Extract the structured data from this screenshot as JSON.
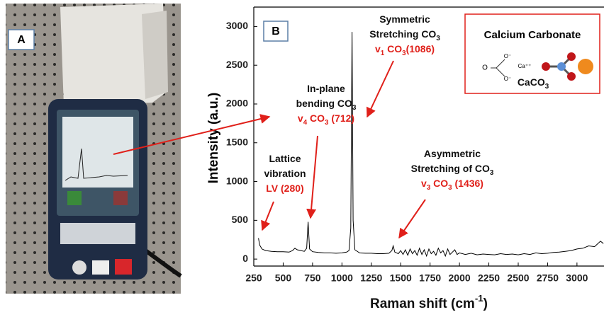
{
  "chart_data": {
    "type": "line",
    "panel_labels": [
      "A",
      "B"
    ],
    "y_label": "Intensity (a.u.)",
    "x_label": [
      "Raman shift (cm",
      "-1",
      ")"
    ],
    "color": "#000000",
    "x": [
      290,
      300,
      320,
      350,
      400,
      450,
      500,
      550,
      580,
      600,
      620,
      650,
      680,
      700,
      712,
      725,
      750,
      800,
      850,
      900,
      950,
      1000,
      1040,
      1060,
      1075,
      1086,
      1095,
      1110,
      1150,
      1200,
      1250,
      1300,
      1350,
      1400,
      1425,
      1436,
      1450,
      1480,
      1500,
      1520,
      1540,
      1560,
      1580,
      1600,
      1620,
      1640,
      1660,
      1680,
      1700,
      1720,
      1740,
      1760,
      1780,
      1800,
      1820,
      1840,
      1860,
      1880,
      1900,
      1920,
      1940,
      1960,
      1980,
      2000,
      2050,
      2100,
      2150,
      2200,
      2250,
      2300,
      2350,
      2400,
      2450,
      2500,
      2550,
      2600,
      2650,
      2700,
      2750,
      2800,
      2850,
      2900,
      2950,
      3000,
      3050,
      3100,
      3150,
      3200,
      3225
    ],
    "values": [
      270,
      180,
      130,
      110,
      100,
      95,
      95,
      90,
      110,
      140,
      120,
      110,
      100,
      140,
      480,
      130,
      95,
      85,
      80,
      80,
      75,
      80,
      90,
      110,
      400,
      2930,
      500,
      120,
      80,
      75,
      75,
      70,
      70,
      75,
      110,
      170,
      90,
      70,
      110,
      60,
      120,
      50,
      130,
      70,
      110,
      50,
      140,
      60,
      120,
      40,
      130,
      70,
      100,
      50,
      140,
      80,
      110,
      40,
      130,
      60,
      90,
      120,
      60,
      80,
      60,
      75,
      55,
      65,
      60,
      55,
      70,
      60,
      65,
      55,
      70,
      60,
      80,
      70,
      75,
      85,
      90,
      100,
      110,
      130,
      140,
      170,
      160,
      230,
      200
    ],
    "xlim": [
      250,
      3230
    ],
    "ylim": [
      -90,
      3250
    ],
    "xticks": [
      250,
      500,
      750,
      1000,
      1250,
      1500,
      1750,
      2000,
      2250,
      2500,
      2750,
      3000
    ],
    "yticks": [
      0,
      500,
      1000,
      1500,
      2000,
      2500,
      3000
    ],
    "annotations": [
      {
        "lines": [
          [
            "Symmetric"
          ],
          [
            "Stretching CO",
            "3"
          ]
        ],
        "assignment": [
          "v",
          "1",
          " CO",
          "3",
          "(1086)"
        ]
      },
      {
        "lines": [
          [
            "In-plane"
          ],
          [
            "bending CO",
            "3"
          ]
        ],
        "assignment": [
          "v",
          "4",
          " CO",
          "3",
          " (712)"
        ]
      },
      {
        "lines": [
          [
            "Lattice"
          ],
          [
            "vibration"
          ]
        ],
        "assignment": [
          "LV (280)"
        ]
      },
      {
        "lines": [
          [
            "Asymmetric"
          ],
          [
            "Stretching of CO",
            "3"
          ]
        ],
        "assignment": [
          "v",
          "3",
          " CO",
          "3",
          " (1436)"
        ]
      }
    ],
    "inset": {
      "title": "Calcium Carbonate",
      "formula": [
        "CaCO",
        "3"
      ],
      "atoms": [
        "O",
        "O⁻",
        "O⁻",
        "Ca⁺⁺"
      ]
    }
  }
}
